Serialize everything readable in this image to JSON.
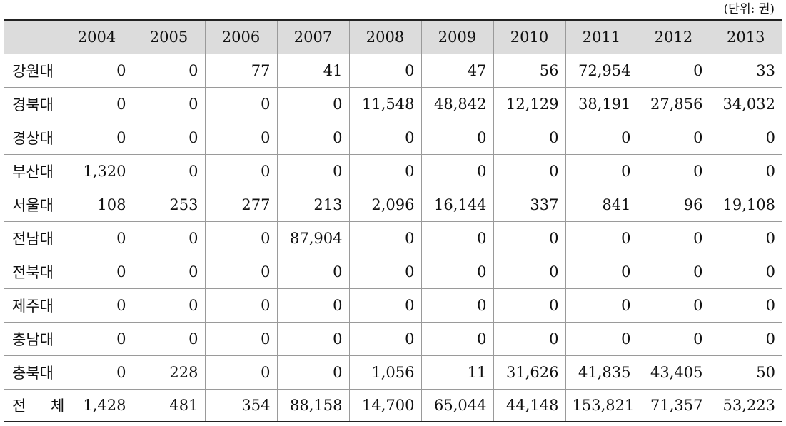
{
  "unit_label": "(단위: 권)",
  "columns": [
    "",
    "2004",
    "2005",
    "2006",
    "2007",
    "2008",
    "2009",
    "2010",
    "2011",
    "2012",
    "2013"
  ],
  "rows": [
    {
      "label": "강원대",
      "values": [
        "0",
        "0",
        "77",
        "41",
        "0",
        "47",
        "56",
        "72,954",
        "0",
        "33"
      ]
    },
    {
      "label": "경북대",
      "values": [
        "0",
        "0",
        "0",
        "0",
        "11,548",
        "48,842",
        "12,129",
        "38,191",
        "27,856",
        "34,032"
      ]
    },
    {
      "label": "경상대",
      "values": [
        "0",
        "0",
        "0",
        "0",
        "0",
        "0",
        "0",
        "0",
        "0",
        "0"
      ]
    },
    {
      "label": "부산대",
      "values": [
        "1,320",
        "0",
        "0",
        "0",
        "0",
        "0",
        "0",
        "0",
        "0",
        "0"
      ]
    },
    {
      "label": "서울대",
      "values": [
        "108",
        "253",
        "277",
        "213",
        "2,096",
        "16,144",
        "337",
        "841",
        "96",
        "19,108"
      ]
    },
    {
      "label": "전남대",
      "values": [
        "0",
        "0",
        "0",
        "87,904",
        "0",
        "0",
        "0",
        "0",
        "0",
        "0"
      ]
    },
    {
      "label": "전북대",
      "values": [
        "0",
        "0",
        "0",
        "0",
        "0",
        "0",
        "0",
        "0",
        "0",
        "0"
      ]
    },
    {
      "label": "제주대",
      "values": [
        "0",
        "0",
        "0",
        "0",
        "0",
        "0",
        "0",
        "0",
        "0",
        "0"
      ]
    },
    {
      "label": "충남대",
      "values": [
        "0",
        "0",
        "0",
        "0",
        "0",
        "0",
        "0",
        "0",
        "0",
        "0"
      ]
    },
    {
      "label": "충북대",
      "values": [
        "0",
        "228",
        "0",
        "0",
        "1,056",
        "11",
        "31,626",
        "41,835",
        "43,405",
        "50"
      ]
    },
    {
      "label": "전 체",
      "values": [
        "1,428",
        "481",
        "354",
        "88,158",
        "14,700",
        "65,044",
        "44,148",
        "153,821",
        "71,357",
        "53,223"
      ]
    }
  ]
}
